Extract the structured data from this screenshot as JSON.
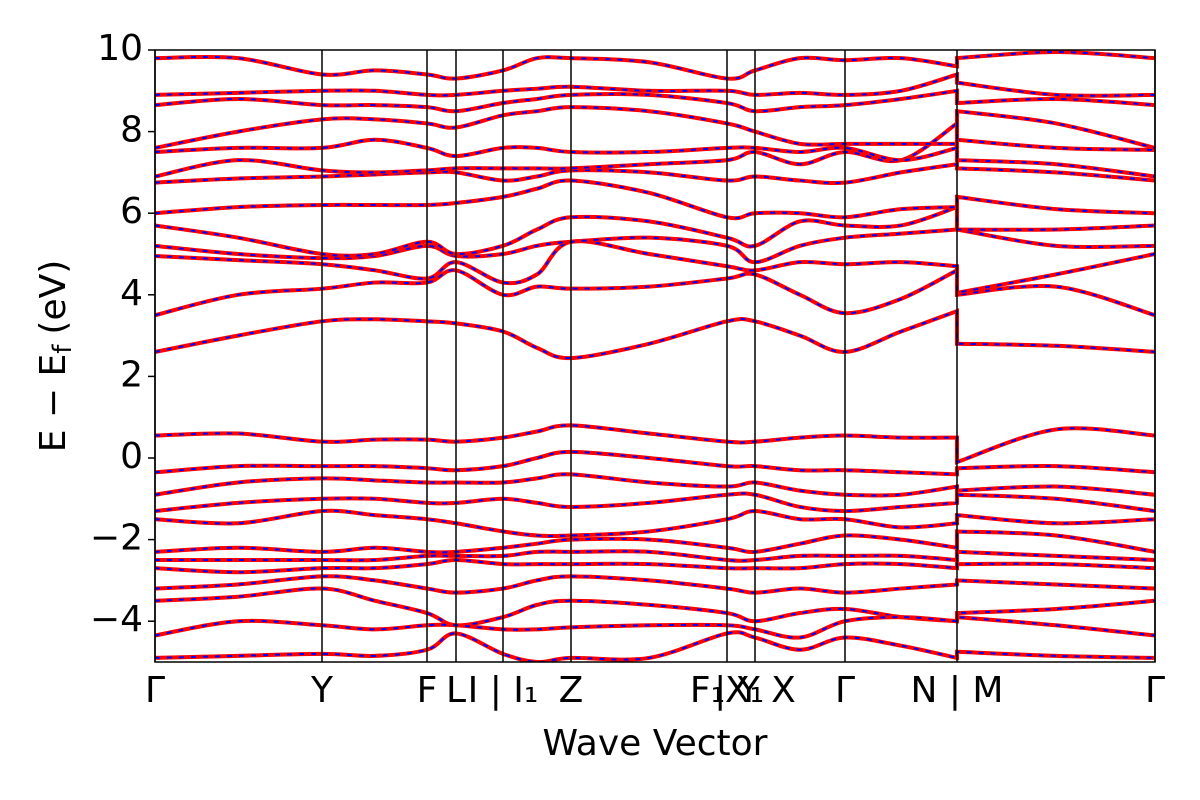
{
  "chart_data": {
    "type": "line",
    "xlabel": "Wave Vector",
    "ylabel": {
      "main": "E − E",
      "sub": "f",
      "unit": "(eV)"
    },
    "line_color": "#ff0000",
    "dash_color": "#0000ff",
    "xlim": [
      0,
      1000
    ],
    "ylim": [
      -5,
      10
    ],
    "xticks": [
      {
        "value": 0,
        "label": "Γ"
      },
      {
        "value": 167,
        "label": "Y"
      },
      {
        "value": 272,
        "label": "F"
      },
      {
        "value": 301,
        "label": "L"
      },
      {
        "value": 348,
        "label": "I | I₁"
      },
      {
        "value": 416,
        "label": "Z"
      },
      {
        "value": 572,
        "label": "F₁X₁"
      },
      {
        "value": 600,
        "label": "| Y X"
      },
      {
        "value": 690,
        "label": "Γ"
      },
      {
        "value": 802,
        "label": "N | M"
      },
      {
        "value": 1000,
        "label": "Γ"
      }
    ],
    "yticks": [
      {
        "value": -4,
        "label": "−4"
      },
      {
        "value": -2,
        "label": "−2"
      },
      0,
      2,
      4,
      6,
      8,
      10
    ],
    "x": [
      0,
      83,
      167,
      220,
      272,
      301,
      348,
      382,
      416,
      494,
      572,
      600,
      645,
      690,
      746,
      802,
      802,
      901,
      1000
    ],
    "series": [
      {
        "values": [
          0.55,
          0.6,
          0.4,
          0.45,
          0.45,
          0.4,
          0.5,
          0.65,
          0.8,
          0.6,
          0.4,
          0.4,
          0.5,
          0.55,
          0.5,
          0.5,
          -0.1,
          0.7,
          0.55
        ]
      },
      {
        "values": [
          -0.35,
          -0.2,
          -0.2,
          -0.2,
          -0.25,
          -0.3,
          -0.2,
          0.0,
          0.15,
          0.0,
          -0.2,
          -0.2,
          -0.3,
          -0.3,
          -0.35,
          -0.4,
          -0.25,
          -0.2,
          -0.35
        ]
      },
      {
        "values": [
          -0.9,
          -0.6,
          -0.5,
          -0.55,
          -0.6,
          -0.6,
          -0.6,
          -0.5,
          -0.4,
          -0.6,
          -0.7,
          -0.6,
          -0.8,
          -0.9,
          -0.9,
          -0.7,
          -0.8,
          -0.7,
          -0.9
        ]
      },
      {
        "values": [
          -1.3,
          -1.1,
          -1.0,
          -1.0,
          -1.1,
          -1.1,
          -1.0,
          -1.1,
          -1.2,
          -1.1,
          -0.9,
          -0.9,
          -1.2,
          -1.3,
          -1.2,
          -1.1,
          -0.9,
          -1.0,
          -1.3
        ]
      },
      {
        "values": [
          -1.5,
          -1.6,
          -1.3,
          -1.4,
          -1.5,
          -1.6,
          -1.8,
          -1.9,
          -1.9,
          -1.8,
          -1.5,
          -1.3,
          -1.5,
          -1.5,
          -1.7,
          -1.6,
          -1.4,
          -1.6,
          -1.5
        ]
      },
      {
        "values": [
          -2.3,
          -2.2,
          -2.3,
          -2.2,
          -2.3,
          -2.3,
          -2.2,
          -2.1,
          -2.0,
          -2.0,
          -2.2,
          -2.3,
          -2.1,
          -1.9,
          -2.0,
          -2.2,
          -1.8,
          -1.9,
          -2.3
        ]
      },
      {
        "values": [
          -2.5,
          -2.5,
          -2.5,
          -2.5,
          -2.4,
          -2.4,
          -2.4,
          -2.3,
          -2.3,
          -2.3,
          -2.5,
          -2.5,
          -2.4,
          -2.4,
          -2.4,
          -2.5,
          -2.3,
          -2.4,
          -2.5
        ]
      },
      {
        "values": [
          -2.7,
          -2.8,
          -2.7,
          -2.7,
          -2.6,
          -2.5,
          -2.6,
          -2.6,
          -2.6,
          -2.6,
          -2.7,
          -2.7,
          -2.7,
          -2.6,
          -2.6,
          -2.7,
          -2.6,
          -2.6,
          -2.7
        ]
      },
      {
        "values": [
          -3.2,
          -3.1,
          -2.9,
          -3.0,
          -3.2,
          -3.3,
          -3.2,
          -3.0,
          -2.9,
          -3.0,
          -3.2,
          -3.3,
          -3.2,
          -3.3,
          -3.2,
          -3.1,
          -3.0,
          -3.1,
          -3.2
        ]
      },
      {
        "values": [
          -3.5,
          -3.4,
          -3.2,
          -3.5,
          -3.8,
          -4.1,
          -3.9,
          -3.6,
          -3.5,
          -3.6,
          -3.8,
          -4.0,
          -3.8,
          -3.7,
          -3.9,
          -4.0,
          -3.8,
          -3.7,
          -3.5
        ]
      },
      {
        "values": [
          -4.35,
          -4.0,
          -4.1,
          -4.2,
          -4.1,
          -4.1,
          -4.2,
          -4.2,
          -4.15,
          -4.1,
          -4.1,
          -4.2,
          -4.4,
          -4.0,
          -3.9,
          -4.0,
          -3.9,
          -4.1,
          -4.35
        ]
      },
      {
        "values": [
          -4.9,
          -4.85,
          -4.8,
          -4.85,
          -4.7,
          -4.3,
          -4.8,
          -5.0,
          -4.9,
          -4.9,
          -4.3,
          -4.4,
          -4.7,
          -4.4,
          -4.6,
          -4.9,
          -4.75,
          -4.85,
          -4.9
        ]
      },
      {
        "values": [
          2.6,
          3.0,
          3.35,
          3.4,
          3.35,
          3.3,
          3.1,
          2.7,
          2.45,
          2.8,
          3.35,
          3.35,
          3.0,
          2.6,
          3.1,
          3.6,
          2.8,
          2.75,
          2.6
        ]
      },
      {
        "values": [
          3.5,
          4.0,
          4.15,
          4.3,
          4.3,
          4.6,
          4.0,
          4.2,
          4.15,
          4.2,
          4.4,
          4.5,
          4.0,
          3.55,
          3.9,
          4.6,
          4.0,
          4.2,
          3.5
        ]
      },
      {
        "values": [
          4.95,
          4.85,
          4.75,
          4.6,
          4.4,
          4.8,
          4.3,
          4.5,
          5.3,
          5.0,
          4.7,
          4.6,
          4.8,
          4.75,
          4.8,
          4.7,
          4.05,
          4.5,
          5.0
        ]
      },
      {
        "values": [
          5.2,
          5.0,
          4.9,
          4.95,
          5.2,
          4.95,
          5.0,
          5.2,
          5.3,
          5.4,
          5.2,
          4.8,
          5.2,
          5.4,
          5.5,
          5.6,
          5.6,
          5.2,
          5.2
        ]
      },
      {
        "values": [
          5.7,
          5.4,
          5.0,
          5.0,
          5.3,
          5.0,
          5.2,
          5.6,
          5.9,
          5.8,
          5.4,
          5.2,
          5.8,
          5.7,
          5.7,
          6.15,
          5.6,
          5.6,
          5.7
        ]
      },
      {
        "values": [
          6.0,
          6.15,
          6.2,
          6.2,
          6.2,
          6.25,
          6.4,
          6.6,
          6.8,
          6.5,
          5.9,
          6.0,
          6.0,
          5.9,
          6.1,
          6.15,
          6.4,
          6.1,
          6.0
        ]
      },
      {
        "values": [
          6.75,
          6.85,
          6.9,
          6.95,
          7.0,
          7.0,
          6.8,
          6.9,
          7.05,
          7.0,
          6.8,
          6.9,
          6.8,
          6.75,
          7.0,
          7.2,
          7.1,
          7.0,
          6.8
        ]
      },
      {
        "values": [
          6.9,
          7.3,
          7.05,
          7.0,
          7.05,
          7.1,
          7.1,
          7.1,
          7.1,
          7.2,
          7.3,
          7.5,
          7.2,
          7.5,
          7.3,
          8.2,
          7.3,
          7.2,
          6.9
        ]
      },
      {
        "values": [
          7.5,
          7.6,
          7.6,
          7.8,
          7.6,
          7.4,
          7.6,
          7.6,
          7.5,
          7.5,
          7.6,
          7.6,
          7.5,
          7.6,
          7.3,
          7.6,
          7.8,
          7.6,
          7.55
        ]
      },
      {
        "values": [
          7.6,
          8.0,
          8.3,
          8.3,
          8.2,
          8.1,
          8.4,
          8.5,
          8.6,
          8.5,
          8.2,
          8.0,
          7.7,
          7.7,
          7.7,
          7.7,
          8.5,
          8.2,
          7.6
        ]
      },
      {
        "values": [
          8.65,
          8.8,
          8.65,
          8.65,
          8.6,
          8.5,
          8.7,
          8.8,
          8.9,
          8.9,
          8.7,
          8.5,
          8.6,
          8.65,
          8.8,
          9.0,
          8.7,
          8.8,
          8.65
        ]
      },
      {
        "values": [
          8.9,
          8.95,
          9.0,
          9.0,
          8.9,
          8.9,
          9.0,
          9.05,
          9.1,
          9.0,
          9.0,
          8.9,
          8.95,
          8.9,
          9.0,
          9.4,
          9.2,
          8.9,
          8.9
        ]
      },
      {
        "values": [
          9.8,
          9.8,
          9.4,
          9.5,
          9.4,
          9.3,
          9.5,
          9.8,
          9.8,
          9.7,
          9.3,
          9.5,
          9.8,
          9.75,
          9.8,
          9.6,
          9.8,
          9.95,
          9.8
        ]
      }
    ]
  }
}
